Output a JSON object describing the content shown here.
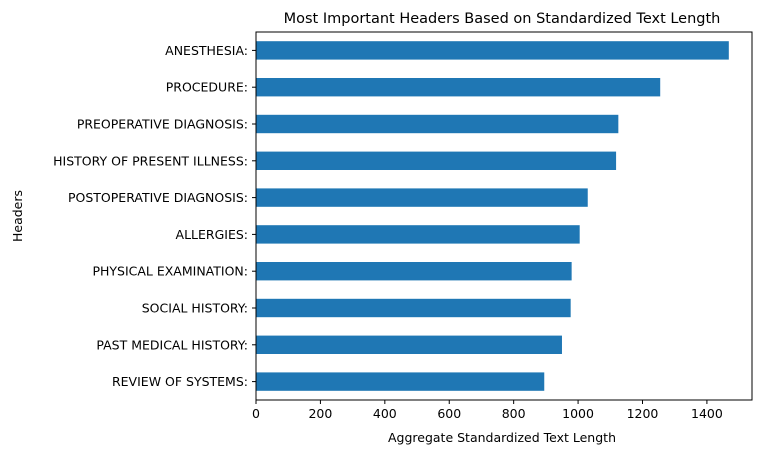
{
  "chart_data": {
    "type": "bar",
    "orientation": "horizontal",
    "title": "Most Important Headers Based on Standardized Text Length",
    "xlabel": "Aggregate Standardized Text Length",
    "ylabel": "Headers",
    "categories": [
      "ANESTHESIA:",
      "PROCEDURE:",
      "PREOPERATIVE DIAGNOSIS:",
      "HISTORY OF PRESENT ILLNESS:",
      "POSTOPERATIVE DIAGNOSIS:",
      "ALLERGIES:",
      "PHYSICAL EXAMINATION:",
      "SOCIAL HISTORY:",
      "PAST MEDICAL HISTORY:",
      "REVIEW OF SYSTEMS:"
    ],
    "values": [
      1468,
      1255,
      1125,
      1118,
      1030,
      1005,
      980,
      977,
      950,
      895
    ],
    "xlim": [
      0,
      1540
    ],
    "xticks": [
      0,
      200,
      400,
      600,
      800,
      1000,
      1200,
      1400
    ],
    "grid": false,
    "legend": "none",
    "bar_color": "#1f77b4"
  }
}
